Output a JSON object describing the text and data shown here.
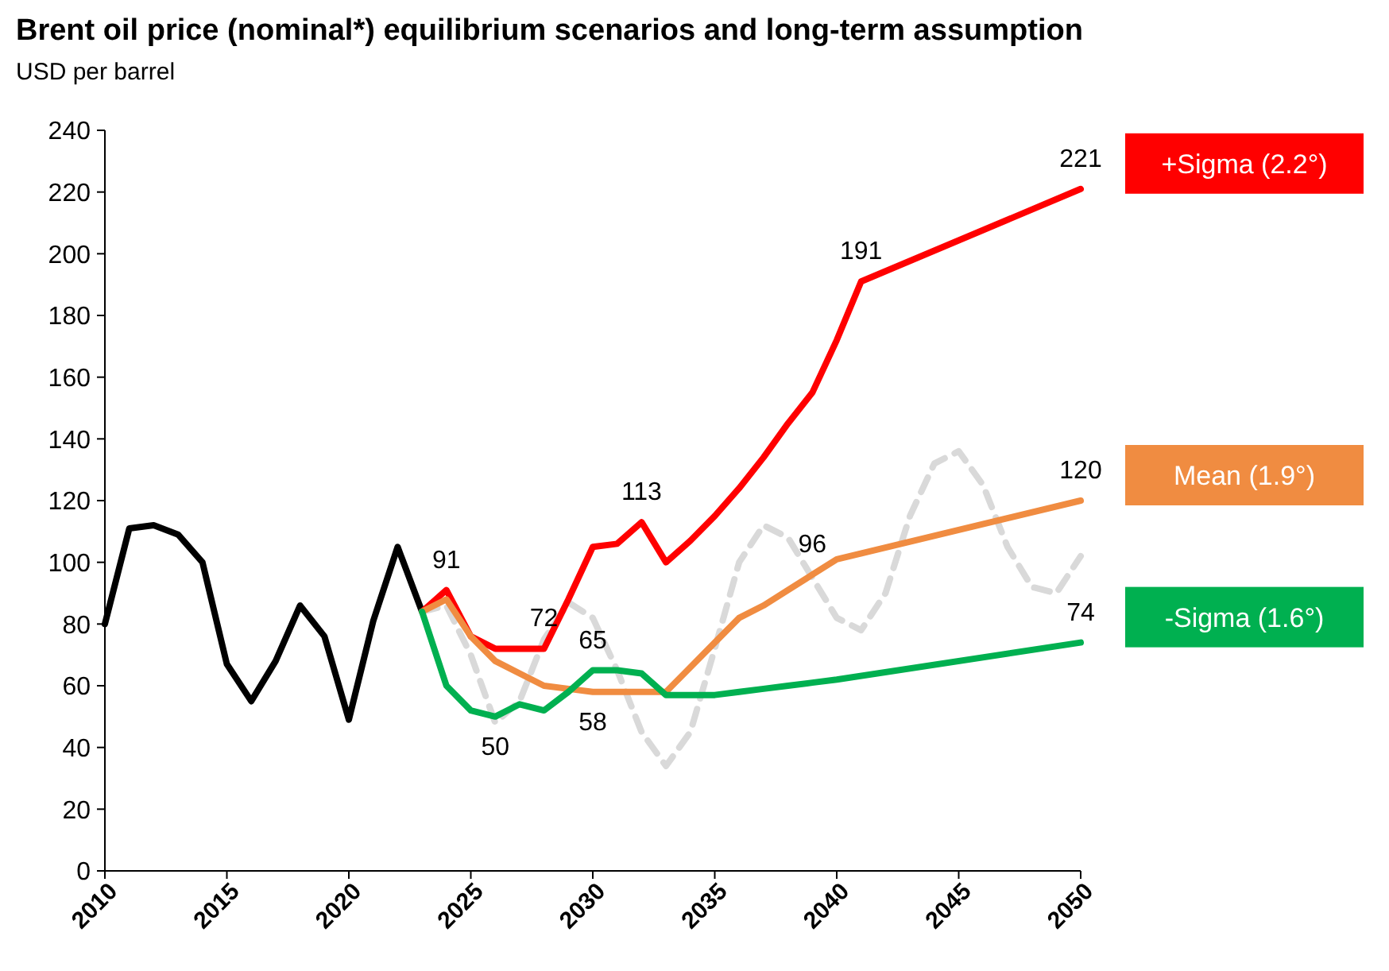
{
  "chart_data": {
    "type": "line",
    "title": "Brent oil price (nominal*) equilibrium scenarios and long-term assumption",
    "subtitle": "USD per barrel",
    "xlim": [
      2010,
      2050
    ],
    "xticks": [
      2010,
      2015,
      2020,
      2025,
      2030,
      2035,
      2040,
      2045,
      2050
    ],
    "ylim": [
      0,
      240
    ],
    "yticks": [
      0,
      20,
      40,
      60,
      80,
      100,
      120,
      140,
      160,
      180,
      200,
      220,
      240
    ],
    "grid": false,
    "legend": "right",
    "marker": "none",
    "series": [
      {
        "color": "#000000",
        "x": [
          2010,
          2011,
          2012,
          2013,
          2014,
          2015,
          2016,
          2017,
          2018,
          2019,
          2020,
          2021,
          2022,
          2023
        ],
        "values": [
          80,
          111,
          112,
          109,
          100,
          67,
          55,
          68,
          86,
          76,
          49,
          81,
          105,
          84
        ]
      },
      {
        "color": "#d9d9d9",
        "line_style": "dashed",
        "x": [
          2023,
          2024,
          2025,
          2026,
          2027,
          2028,
          2029,
          2030,
          2031,
          2032,
          2033,
          2034,
          2035,
          2036,
          2037,
          2038,
          2039,
          2040,
          2041,
          2042,
          2043,
          2044,
          2045,
          2046,
          2047,
          2048,
          2049,
          2050
        ],
        "values": [
          84,
          86,
          70,
          48,
          55,
          75,
          87,
          82,
          65,
          45,
          34,
          45,
          72,
          100,
          112,
          108,
          95,
          82,
          78,
          90,
          115,
          132,
          136,
          125,
          105,
          92,
          90,
          102
        ]
      },
      {
        "name": "+Sigma (2.2°)",
        "color": "#ff0000",
        "x": [
          2023,
          2024,
          2025,
          2026,
          2027,
          2028,
          2029,
          2030,
          2031,
          2032,
          2033,
          2034,
          2035,
          2036,
          2037,
          2038,
          2039,
          2040,
          2041,
          2050
        ],
        "values": [
          84,
          91,
          76,
          72,
          72,
          72,
          88,
          105,
          106,
          113,
          100,
          107,
          115,
          124,
          134,
          145,
          155,
          172,
          191,
          221
        ]
      },
      {
        "name": "Mean (1.9°)",
        "color": "#f08c41",
        "x": [
          2023,
          2024,
          2025,
          2026,
          2027,
          2028,
          2029,
          2030,
          2031,
          2032,
          2033,
          2034,
          2035,
          2036,
          2037,
          2038,
          2039,
          2040,
          2050
        ],
        "values": [
          84,
          88,
          76,
          68,
          64,
          60,
          59,
          58,
          58,
          58,
          58,
          66,
          74,
          82,
          86,
          91,
          96,
          101,
          120
        ]
      },
      {
        "name": "-Sigma (1.6°)",
        "color": "#00b050",
        "x": [
          2023,
          2024,
          2025,
          2026,
          2027,
          2028,
          2029,
          2030,
          2031,
          2032,
          2033,
          2034,
          2035,
          2036,
          2037,
          2038,
          2039,
          2040,
          2050
        ],
        "values": [
          84,
          60,
          52,
          50,
          54,
          52,
          58,
          65,
          65,
          64,
          57,
          57,
          57,
          58,
          59,
          60,
          61,
          62,
          74
        ]
      }
    ],
    "annotations": [
      {
        "text": "91",
        "x": 2024,
        "y": 91
      },
      {
        "text": "50",
        "x": 2026,
        "y": 50
      },
      {
        "text": "72",
        "x": 2028,
        "y": 72
      },
      {
        "text": "65",
        "x": 2030,
        "y": 65
      },
      {
        "text": "58",
        "x": 2030,
        "y": 58
      },
      {
        "text": "113",
        "x": 2032,
        "y": 113
      },
      {
        "text": "96",
        "x": 2039,
        "y": 96
      },
      {
        "text": "191",
        "x": 2041,
        "y": 191
      },
      {
        "text": "221",
        "x": 2050,
        "y": 221
      },
      {
        "text": "120",
        "x": 2050,
        "y": 120
      },
      {
        "text": "74",
        "x": 2050,
        "y": 74
      }
    ]
  }
}
